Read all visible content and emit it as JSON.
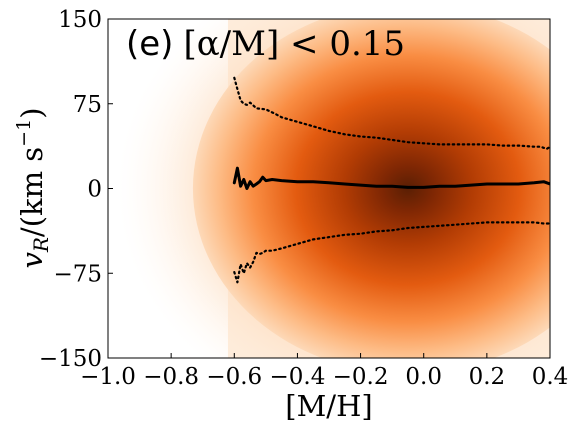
{
  "chart_data": {
    "type": "heatmap",
    "panel_tag": "(e)",
    "panel_condition": "[α/M] < 0.15",
    "xlabel": "[M/H]",
    "ylabel": "v_R/(km s⁻¹)",
    "ylabel_parts": {
      "var": "v",
      "sub": "R",
      "unit": "/(km s",
      "sup": "−1",
      "close": ")"
    },
    "xlim": [
      -1.0,
      0.4
    ],
    "ylim": [
      -150,
      150
    ],
    "xticks": [
      -1.0,
      -0.8,
      -0.6,
      -0.4,
      -0.2,
      0.0,
      0.2,
      0.4
    ],
    "xtick_labels": [
      "−1.0",
      "−0.8",
      "−0.6",
      "−0.4",
      "−0.2",
      "0.0",
      "0.2",
      "0.4"
    ],
    "yticks": [
      -150,
      -75,
      0,
      75,
      150
    ],
    "ytick_labels": [
      "−150",
      "−75",
      "0",
      "75",
      "150"
    ],
    "colormap": "Oranges",
    "density_peak": {
      "x": -0.05,
      "y": 0
    },
    "median_series": {
      "style": "solid",
      "x": [
        -0.6,
        -0.59,
        -0.58,
        -0.57,
        -0.56,
        -0.55,
        -0.54,
        -0.53,
        -0.52,
        -0.51,
        -0.5,
        -0.48,
        -0.45,
        -0.4,
        -0.35,
        -0.3,
        -0.25,
        -0.2,
        -0.15,
        -0.1,
        -0.05,
        0.0,
        0.05,
        0.1,
        0.15,
        0.2,
        0.25,
        0.3,
        0.35,
        0.38,
        0.4
      ],
      "y": [
        5,
        18,
        2,
        8,
        0,
        6,
        2,
        4,
        6,
        10,
        7,
        8,
        7,
        6,
        6,
        5,
        4,
        3,
        2,
        2,
        1,
        1,
        2,
        2,
        3,
        4,
        4,
        4,
        5,
        6,
        4
      ]
    },
    "upper_percentile_series": {
      "style": "dotted",
      "x": [
        -0.6,
        -0.59,
        -0.58,
        -0.57,
        -0.56,
        -0.55,
        -0.53,
        -0.5,
        -0.47,
        -0.45,
        -0.4,
        -0.35,
        -0.3,
        -0.25,
        -0.2,
        -0.15,
        -0.1,
        -0.05,
        0.0,
        0.05,
        0.1,
        0.15,
        0.2,
        0.25,
        0.3,
        0.35,
        0.37,
        0.39,
        0.4
      ],
      "y": [
        98,
        88,
        78,
        75,
        74,
        76,
        71,
        70,
        66,
        63,
        59,
        55,
        51,
        48,
        46,
        45,
        43,
        41,
        40,
        39,
        39,
        39,
        39,
        38,
        38,
        37,
        37,
        35,
        37
      ]
    },
    "lower_percentile_series": {
      "style": "dotted",
      "x": [
        -0.6,
        -0.59,
        -0.58,
        -0.57,
        -0.56,
        -0.55,
        -0.54,
        -0.53,
        -0.52,
        -0.51,
        -0.5,
        -0.48,
        -0.45,
        -0.4,
        -0.35,
        -0.3,
        -0.25,
        -0.2,
        -0.15,
        -0.1,
        -0.05,
        0.0,
        0.05,
        0.1,
        0.15,
        0.2,
        0.25,
        0.3,
        0.35,
        0.38,
        0.4
      ],
      "y": [
        -74,
        -83,
        -67,
        -75,
        -66,
        -70,
        -65,
        -57,
        -58,
        -57,
        -55,
        -55,
        -53,
        -49,
        -45,
        -43,
        -41,
        -40,
        -38,
        -37,
        -35,
        -34,
        -33,
        -32,
        -31,
        -30,
        -30,
        -30,
        -30,
        -31,
        -31
      ]
    }
  }
}
